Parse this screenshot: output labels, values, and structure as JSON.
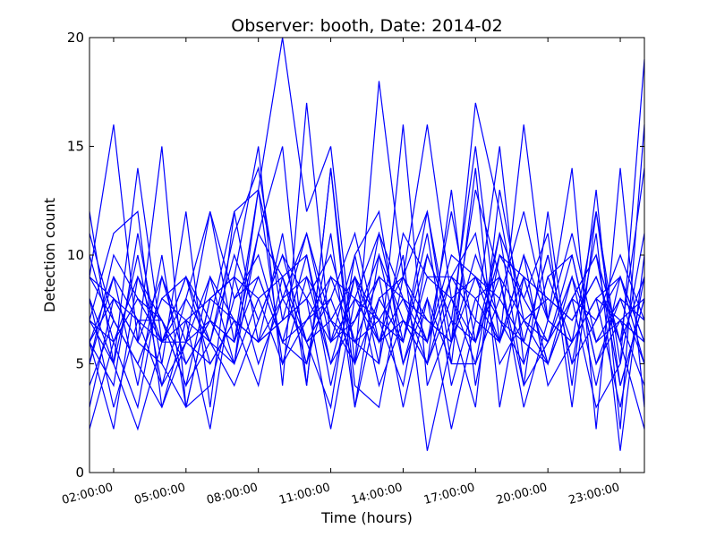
{
  "chart_data": {
    "type": "line",
    "title": "Observer: booth, Date: 2014-02",
    "xlabel": "Time (hours)",
    "ylabel": "Detection count",
    "ylim": [
      0,
      20
    ],
    "yticks": [
      0,
      5,
      10,
      15,
      20
    ],
    "xlim": [
      1,
      24
    ],
    "x_tick_values": [
      2,
      5,
      8,
      11,
      14,
      17,
      20,
      23
    ],
    "x_tick_labels": [
      "02:00:00",
      "05:00:00",
      "08:00:00",
      "11:00:00",
      "14:00:00",
      "17:00:00",
      "20:00:00",
      "23:00:00"
    ],
    "x": [
      1,
      2,
      3,
      4,
      5,
      6,
      7,
      8,
      9,
      10,
      11,
      12,
      13,
      14,
      15,
      16,
      17,
      18,
      19,
      20,
      21,
      22,
      23,
      24
    ],
    "line_color": "#0000ff",
    "grid": false,
    "legend": "none",
    "series": [
      {
        "values": [
          12,
          5,
          14,
          6,
          9,
          7,
          12,
          13,
          20,
          12,
          15,
          5,
          18,
          9,
          12,
          6,
          17,
          12,
          6,
          5,
          8,
          3,
          5,
          19
        ]
      },
      {
        "values": [
          9,
          16,
          6,
          15,
          3,
          8,
          9,
          15,
          4,
          17,
          6,
          10,
          5,
          16,
          4,
          7,
          15,
          6,
          16,
          7,
          14,
          2,
          14,
          3
        ]
      },
      {
        "values": [
          6,
          4,
          11,
          5,
          12,
          3,
          12,
          6,
          11,
          4,
          14,
          4,
          3,
          9,
          16,
          8,
          6,
          11,
          4,
          12,
          4,
          13,
          2,
          16
        ]
      },
      {
        "values": [
          7,
          11,
          12,
          3,
          7,
          6,
          11,
          14,
          7,
          11,
          6,
          8,
          11,
          6,
          12,
          5,
          14,
          3,
          9,
          5,
          8,
          10,
          6,
          14
        ]
      },
      {
        "values": [
          2,
          6,
          3,
          9,
          6,
          7,
          5,
          11,
          15,
          4,
          14,
          3,
          10,
          7,
          5,
          13,
          4,
          10,
          8,
          11,
          3,
          12,
          4,
          8
        ]
      },
      {
        "values": [
          8,
          3,
          7,
          4,
          8,
          12,
          6,
          13,
          8,
          11,
          7,
          9,
          6,
          10,
          1,
          6,
          13,
          9,
          3,
          7,
          6,
          12,
          5,
          11
        ]
      },
      {
        "values": [
          5,
          9,
          4,
          10,
          3,
          8,
          7,
          4,
          9,
          6,
          3,
          10,
          12,
          5,
          8,
          2,
          7,
          15,
          5,
          9,
          10,
          5,
          7,
          4
        ]
      },
      {
        "values": [
          10,
          6,
          8,
          6,
          6,
          12,
          8,
          9,
          6,
          5,
          9,
          6,
          5,
          11,
          9,
          9,
          8,
          6,
          10,
          4,
          6,
          8,
          3,
          9
        ]
      },
      {
        "values": [
          6,
          2,
          9,
          7,
          4,
          6,
          10,
          7,
          10,
          8,
          2,
          8,
          7,
          4,
          10,
          7,
          3,
          13,
          7,
          6,
          9,
          4,
          9,
          6
        ]
      },
      {
        "values": [
          4,
          7,
          5,
          3,
          6,
          9,
          5,
          13,
          5,
          7,
          8,
          5,
          11,
          8,
          6,
          10,
          9,
          7,
          6,
          10,
          5,
          11,
          1,
          10
        ]
      },
      {
        "values": [
          7,
          5,
          2,
          6,
          9,
          5,
          7,
          6,
          8,
          9,
          5,
          7,
          9,
          3,
          8,
          5,
          5,
          8,
          12,
          7,
          11,
          6,
          8,
          5
        ]
      },
      {
        "values": [
          9,
          8,
          6,
          5,
          3,
          4,
          8,
          10,
          6,
          10,
          4,
          9,
          4,
          7,
          5,
          9,
          11,
          5,
          7,
          8,
          7,
          9,
          6,
          2
        ]
      },
      {
        "values": [
          5,
          10,
          8,
          7,
          5,
          7,
          6,
          11,
          9,
          5,
          11,
          3,
          8,
          6,
          11,
          4,
          8,
          9,
          4,
          6,
          8,
          7,
          10,
          7
        ]
      },
      {
        "values": [
          11,
          7,
          5,
          8,
          7,
          2,
          9,
          8,
          5,
          9,
          7,
          6,
          7,
          9,
          6,
          12,
          6,
          10,
          9,
          5,
          9,
          6,
          7,
          8
        ]
      },
      {
        "values": [
          6,
          9,
          7,
          6,
          8,
          6,
          4,
          7,
          10,
          6,
          8,
          11,
          6,
          8,
          7,
          6,
          10,
          7,
          5,
          9,
          6,
          8,
          9,
          6
        ]
      },
      {
        "values": [
          8,
          5,
          10,
          4,
          6,
          5,
          7,
          6,
          7,
          8,
          6,
          7,
          10,
          5,
          9,
          8,
          5,
          11,
          8,
          6,
          10,
          5,
          8,
          7
        ]
      },
      {
        "values": [
          3,
          8,
          6,
          9,
          5,
          7,
          6,
          9,
          6,
          7,
          9,
          8,
          6,
          7,
          6,
          9,
          7,
          6,
          9,
          8,
          7,
          9,
          6,
          9
        ]
      },
      {
        "values": [
          7,
          6,
          9,
          6,
          7,
          8,
          9,
          5,
          8,
          6,
          7,
          5,
          8,
          9,
          7,
          6,
          9,
          8,
          6,
          10,
          5,
          7,
          9,
          5
        ]
      },
      {
        "values": [
          9,
          7,
          5,
          8,
          9,
          6,
          5,
          8,
          9,
          10,
          5,
          9,
          7,
          6,
          10,
          7,
          6,
          9,
          7,
          5,
          8,
          10,
          4,
          8
        ]
      },
      {
        "values": [
          6,
          8,
          7,
          7,
          4,
          9,
          7,
          6,
          7,
          8,
          10,
          6,
          9,
          8,
          5,
          8,
          9,
          6,
          10,
          7,
          6,
          8,
          7,
          6
        ]
      }
    ]
  }
}
